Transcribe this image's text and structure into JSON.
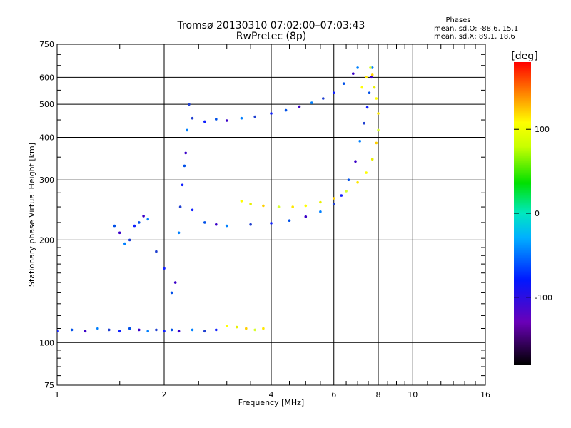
{
  "chart_data": {
    "type": "scatter",
    "title": "Tromsø 20130310 07:02:00–07:03:43",
    "subtitle": "RwPretec (8p)",
    "xlabel": "Frequency [MHz]",
    "ylabel": "Stationary phase Virtual Height [km]",
    "x_scale": "log",
    "y_scale": "log",
    "xlim": [
      1,
      16
    ],
    "ylim": [
      75,
      750
    ],
    "x_ticks": [
      "1",
      "2",
      "4",
      "6",
      "8",
      "10",
      "16"
    ],
    "y_ticks": [
      "750",
      "600",
      "500",
      "400",
      "300",
      "200",
      "100",
      "75"
    ],
    "grid": true,
    "colorbar": {
      "label": "[deg]",
      "range": [
        -180,
        180
      ],
      "ticks": [
        "100",
        "0",
        "-100"
      ]
    },
    "info": {
      "title": "Phases",
      "line1": "mean, sd,O:  -88.6,  15.1",
      "line2": "mean, sd,X:   89.1,  18.6"
    },
    "series": [
      {
        "name": "O",
        "points": [
          [
            1.0,
            108
          ],
          [
            1.1,
            109
          ],
          [
            1.2,
            108
          ],
          [
            1.3,
            110
          ],
          [
            1.4,
            109
          ],
          [
            1.5,
            108
          ],
          [
            1.6,
            110
          ],
          [
            1.7,
            109
          ],
          [
            1.8,
            108
          ],
          [
            1.9,
            109
          ],
          [
            2.0,
            108
          ],
          [
            2.1,
            109
          ],
          [
            2.2,
            108
          ],
          [
            2.4,
            109
          ],
          [
            2.6,
            108
          ],
          [
            2.8,
            109
          ],
          [
            1.45,
            220
          ],
          [
            1.5,
            210
          ],
          [
            1.55,
            195
          ],
          [
            1.6,
            200
          ],
          [
            1.65,
            220
          ],
          [
            1.7,
            225
          ],
          [
            1.75,
            235
          ],
          [
            1.8,
            230
          ],
          [
            1.9,
            185
          ],
          [
            2.0,
            165
          ],
          [
            2.1,
            140
          ],
          [
            2.15,
            150
          ],
          [
            2.2,
            210
          ],
          [
            2.22,
            250
          ],
          [
            2.25,
            290
          ],
          [
            2.28,
            330
          ],
          [
            2.3,
            360
          ],
          [
            2.32,
            420
          ],
          [
            2.35,
            500
          ],
          [
            2.4,
            245
          ],
          [
            2.6,
            225
          ],
          [
            2.8,
            222
          ],
          [
            3.0,
            220
          ],
          [
            3.5,
            222
          ],
          [
            4.0,
            224
          ],
          [
            4.5,
            228
          ],
          [
            5.0,
            234
          ],
          [
            5.5,
            242
          ],
          [
            6.0,
            255
          ],
          [
            6.3,
            270
          ],
          [
            6.6,
            300
          ],
          [
            6.9,
            340
          ],
          [
            7.1,
            390
          ],
          [
            7.3,
            440
          ],
          [
            7.45,
            490
          ],
          [
            7.55,
            540
          ],
          [
            7.65,
            600
          ],
          [
            7.7,
            640
          ],
          [
            2.4,
            455
          ],
          [
            2.6,
            445
          ],
          [
            2.8,
            452
          ],
          [
            3.0,
            448
          ],
          [
            3.3,
            455
          ],
          [
            3.6,
            460
          ],
          [
            4.0,
            470
          ],
          [
            4.4,
            480
          ],
          [
            4.8,
            492
          ],
          [
            5.2,
            505
          ],
          [
            5.6,
            520
          ],
          [
            6.0,
            540
          ],
          [
            6.4,
            575
          ],
          [
            6.8,
            615
          ],
          [
            7.0,
            640
          ]
        ]
      },
      {
        "name": "X",
        "points": [
          [
            3.0,
            112
          ],
          [
            3.2,
            111
          ],
          [
            3.4,
            110
          ],
          [
            3.6,
            109
          ],
          [
            3.8,
            110
          ],
          [
            3.3,
            260
          ],
          [
            3.5,
            255
          ],
          [
            3.8,
            252
          ],
          [
            4.2,
            250
          ],
          [
            4.6,
            250
          ],
          [
            5.0,
            252
          ],
          [
            5.5,
            258
          ],
          [
            6.0,
            265
          ],
          [
            6.5,
            278
          ],
          [
            7.0,
            295
          ],
          [
            7.4,
            315
          ],
          [
            7.7,
            345
          ],
          [
            7.9,
            385
          ],
          [
            8.0,
            420
          ],
          [
            8.0,
            470
          ],
          [
            7.9,
            520
          ],
          [
            7.8,
            560
          ],
          [
            7.7,
            610
          ],
          [
            7.6,
            640
          ],
          [
            7.4,
            600
          ],
          [
            7.2,
            560
          ]
        ]
      }
    ]
  }
}
